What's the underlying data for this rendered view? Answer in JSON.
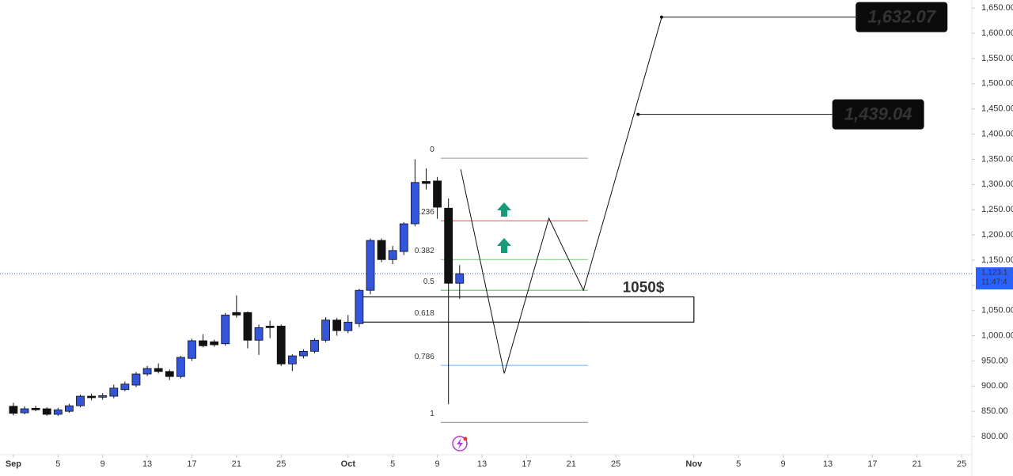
{
  "chart_data": {
    "type": "candlestick",
    "x": [
      0,
      1,
      2,
      3,
      4,
      5,
      6,
      7,
      8,
      9,
      10,
      11,
      12,
      13,
      14,
      15,
      16,
      17,
      18,
      19,
      20,
      21,
      22,
      23,
      24,
      25,
      26,
      27,
      28,
      29,
      30,
      31,
      32,
      33,
      34,
      35,
      36,
      37,
      38,
      39,
      40
    ],
    "open": [
      860,
      847,
      856,
      855,
      844,
      850,
      861,
      880,
      878,
      880,
      893,
      902,
      924,
      935,
      929,
      919,
      955,
      990,
      988,
      984,
      1046,
      1046,
      991,
      1019,
      1019,
      944,
      960,
      969,
      991,
      1031,
      1010,
      1024,
      1090,
      1189,
      1151,
      1167,
      1222,
      1306,
      1307,
      1253,
      1104
    ],
    "high": [
      867,
      860,
      861,
      858,
      857,
      865,
      883,
      885,
      886,
      903,
      909,
      928,
      940,
      945,
      933,
      960,
      994,
      1003,
      992,
      1045,
      1080,
      1048,
      1022,
      1030,
      1022,
      963,
      973,
      995,
      1037,
      1035,
      1041,
      1093,
      1193,
      1193,
      1178,
      1225,
      1350,
      1332,
      1315,
      1272,
      1140
    ],
    "low": [
      842,
      844,
      850,
      841,
      841,
      847,
      858,
      872,
      873,
      876,
      890,
      898,
      920,
      925,
      912,
      915,
      950,
      977,
      978,
      980,
      1036,
      975,
      962,
      995,
      940,
      930,
      955,
      965,
      987,
      1000,
      1005,
      1017,
      1082,
      1146,
      1142,
      1160,
      1217,
      1290,
      1232,
      864,
      1073
    ],
    "close": [
      846,
      855,
      853,
      844,
      853,
      861,
      880,
      877,
      881,
      896,
      904,
      924,
      935,
      929,
      919,
      957,
      990,
      980,
      982,
      1041,
      1041,
      991,
      1016,
      1016,
      944,
      960,
      969,
      991,
      1031,
      1010,
      1027,
      1090,
      1189,
      1151,
      1169,
      1222,
      1304,
      1302,
      1255,
      1104,
      1123
    ],
    "up_color": "#3455db",
    "down_color": "#111111",
    "xlim": [
      -1.2,
      85.7
    ],
    "xticks": [
      {
        "value": 0,
        "label": "Sep"
      },
      {
        "value": 4,
        "label": "5"
      },
      {
        "value": 8,
        "label": "9"
      },
      {
        "value": 12,
        "label": "13"
      },
      {
        "value": 16,
        "label": "17"
      },
      {
        "value": 20,
        "label": "21"
      },
      {
        "value": 24,
        "label": "25"
      },
      {
        "value": 30,
        "label": "Oct"
      },
      {
        "value": 34,
        "label": "5"
      },
      {
        "value": 38,
        "label": "9"
      },
      {
        "value": 42,
        "label": "13"
      },
      {
        "value": 46,
        "label": "17"
      },
      {
        "value": 50,
        "label": "21"
      },
      {
        "value": 54,
        "label": "25"
      },
      {
        "value": 61,
        "label": "Nov"
      },
      {
        "value": 65,
        "label": "5"
      },
      {
        "value": 69,
        "label": "9"
      },
      {
        "value": 73,
        "label": "13"
      },
      {
        "value": 77,
        "label": "17"
      },
      {
        "value": 81,
        "label": "21"
      },
      {
        "value": 85,
        "label": "25"
      }
    ],
    "ylim": [
      764,
      1666
    ],
    "yticks": [
      {
        "value": 800,
        "label": "800.00"
      },
      {
        "value": 850,
        "label": "850.00"
      },
      {
        "value": 900,
        "label": "900.00"
      },
      {
        "value": 950,
        "label": "950.00"
      },
      {
        "value": 1000,
        "label": "1,000.00"
      },
      {
        "value": 1050,
        "label": "1,050.00"
      },
      {
        "value": 1100,
        "label": "1,100.00"
      },
      {
        "value": 1150,
        "label": "1,150.00"
      },
      {
        "value": 1200,
        "label": "1,200.00"
      },
      {
        "value": 1250,
        "label": "1,250.00"
      },
      {
        "value": 1300,
        "label": "1,300.00"
      },
      {
        "value": 1350,
        "label": "1,350.00"
      },
      {
        "value": 1400,
        "label": "1,400.00"
      },
      {
        "value": 1450,
        "label": "1,450.00"
      },
      {
        "value": 1500,
        "label": "1,500.00"
      },
      {
        "value": 1550,
        "label": "1,550.00"
      },
      {
        "value": 1600,
        "label": "1,600.00"
      },
      {
        "value": 1650,
        "label": "1,650.00"
      }
    ],
    "fib": {
      "x": [
        38.3,
        51.5
      ],
      "levels": [
        {
          "label": "0",
          "value": 1352,
          "color": "#999999"
        },
        {
          "label": "0.236",
          "value": 1228,
          "color": "#e05252"
        },
        {
          "label": "0.382",
          "value": 1151,
          "color": "#7cc47c"
        },
        {
          "label": "0.5",
          "value": 1090,
          "color": "#4caf50"
        },
        {
          "label": "0.618",
          "value": 1027,
          "color": "#0d7d6c"
        },
        {
          "label": "0.786",
          "value": 941,
          "color": "#64b5f6"
        },
        {
          "label": "1",
          "value": 828,
          "color": "#888888"
        }
      ]
    },
    "zone": {
      "label": "1050$",
      "low": 1027,
      "high": 1077,
      "x": [
        31,
        61
      ]
    },
    "projection": {
      "x": [
        40.1,
        44,
        48,
        51.1,
        58.1
      ],
      "y": [
        1330,
        925,
        1233,
        1090,
        1631
      ]
    },
    "targets": [
      {
        "label": "1,632.07",
        "value": 1632.07,
        "x": [
          58.1,
          75.5
        ]
      },
      {
        "label": "1,439.04",
        "value": 1439.04,
        "x": [
          56,
          73.4
        ]
      }
    ],
    "last_price": {
      "value": 1123.1,
      "label": "1,123.1",
      "countdown": "11:47:4"
    }
  }
}
